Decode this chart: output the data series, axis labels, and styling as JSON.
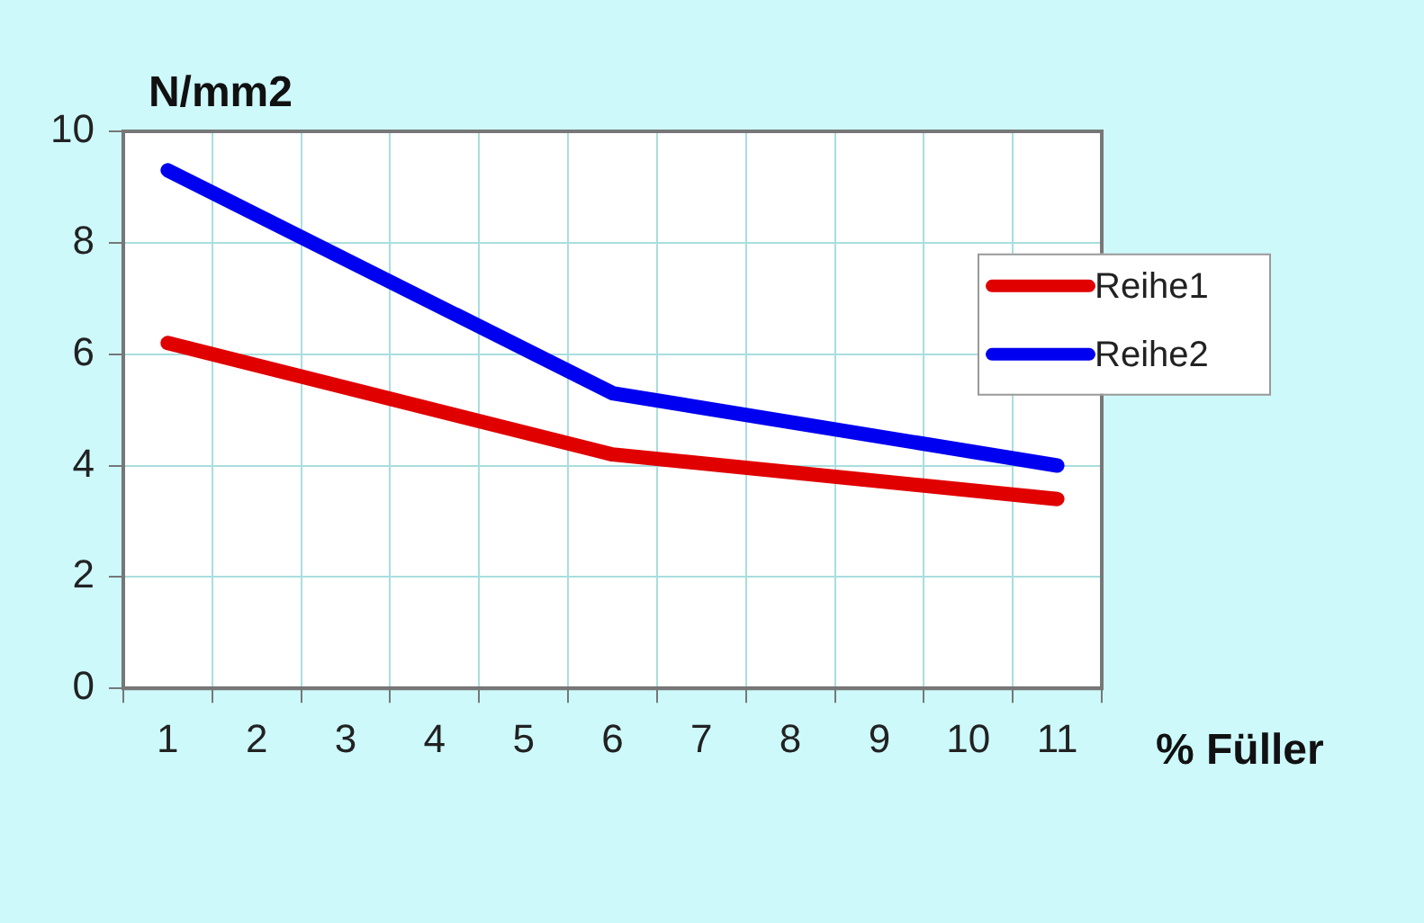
{
  "chart_data": {
    "type": "line",
    "xlabel": "% Füller",
    "ylabel": "N/mm2",
    "categories": [
      "1",
      "2",
      "3",
      "4",
      "5",
      "6",
      "7",
      "8",
      "9",
      "10",
      "11"
    ],
    "series": [
      {
        "name": "Reihe1",
        "color": "#e00000",
        "x": [
          "1",
          "6",
          "11"
        ],
        "values": [
          6.2,
          4.2,
          3.4
        ]
      },
      {
        "name": "Reihe2",
        "color": "#0000f0",
        "x": [
          "1",
          "6",
          "11"
        ],
        "values": [
          9.3,
          5.3,
          4.0
        ]
      }
    ],
    "ylim": [
      0,
      10
    ],
    "yticks": [
      0,
      2,
      4,
      6,
      8,
      10
    ],
    "grid": true,
    "legend": "right",
    "marker": "none",
    "line_style": "solid"
  }
}
